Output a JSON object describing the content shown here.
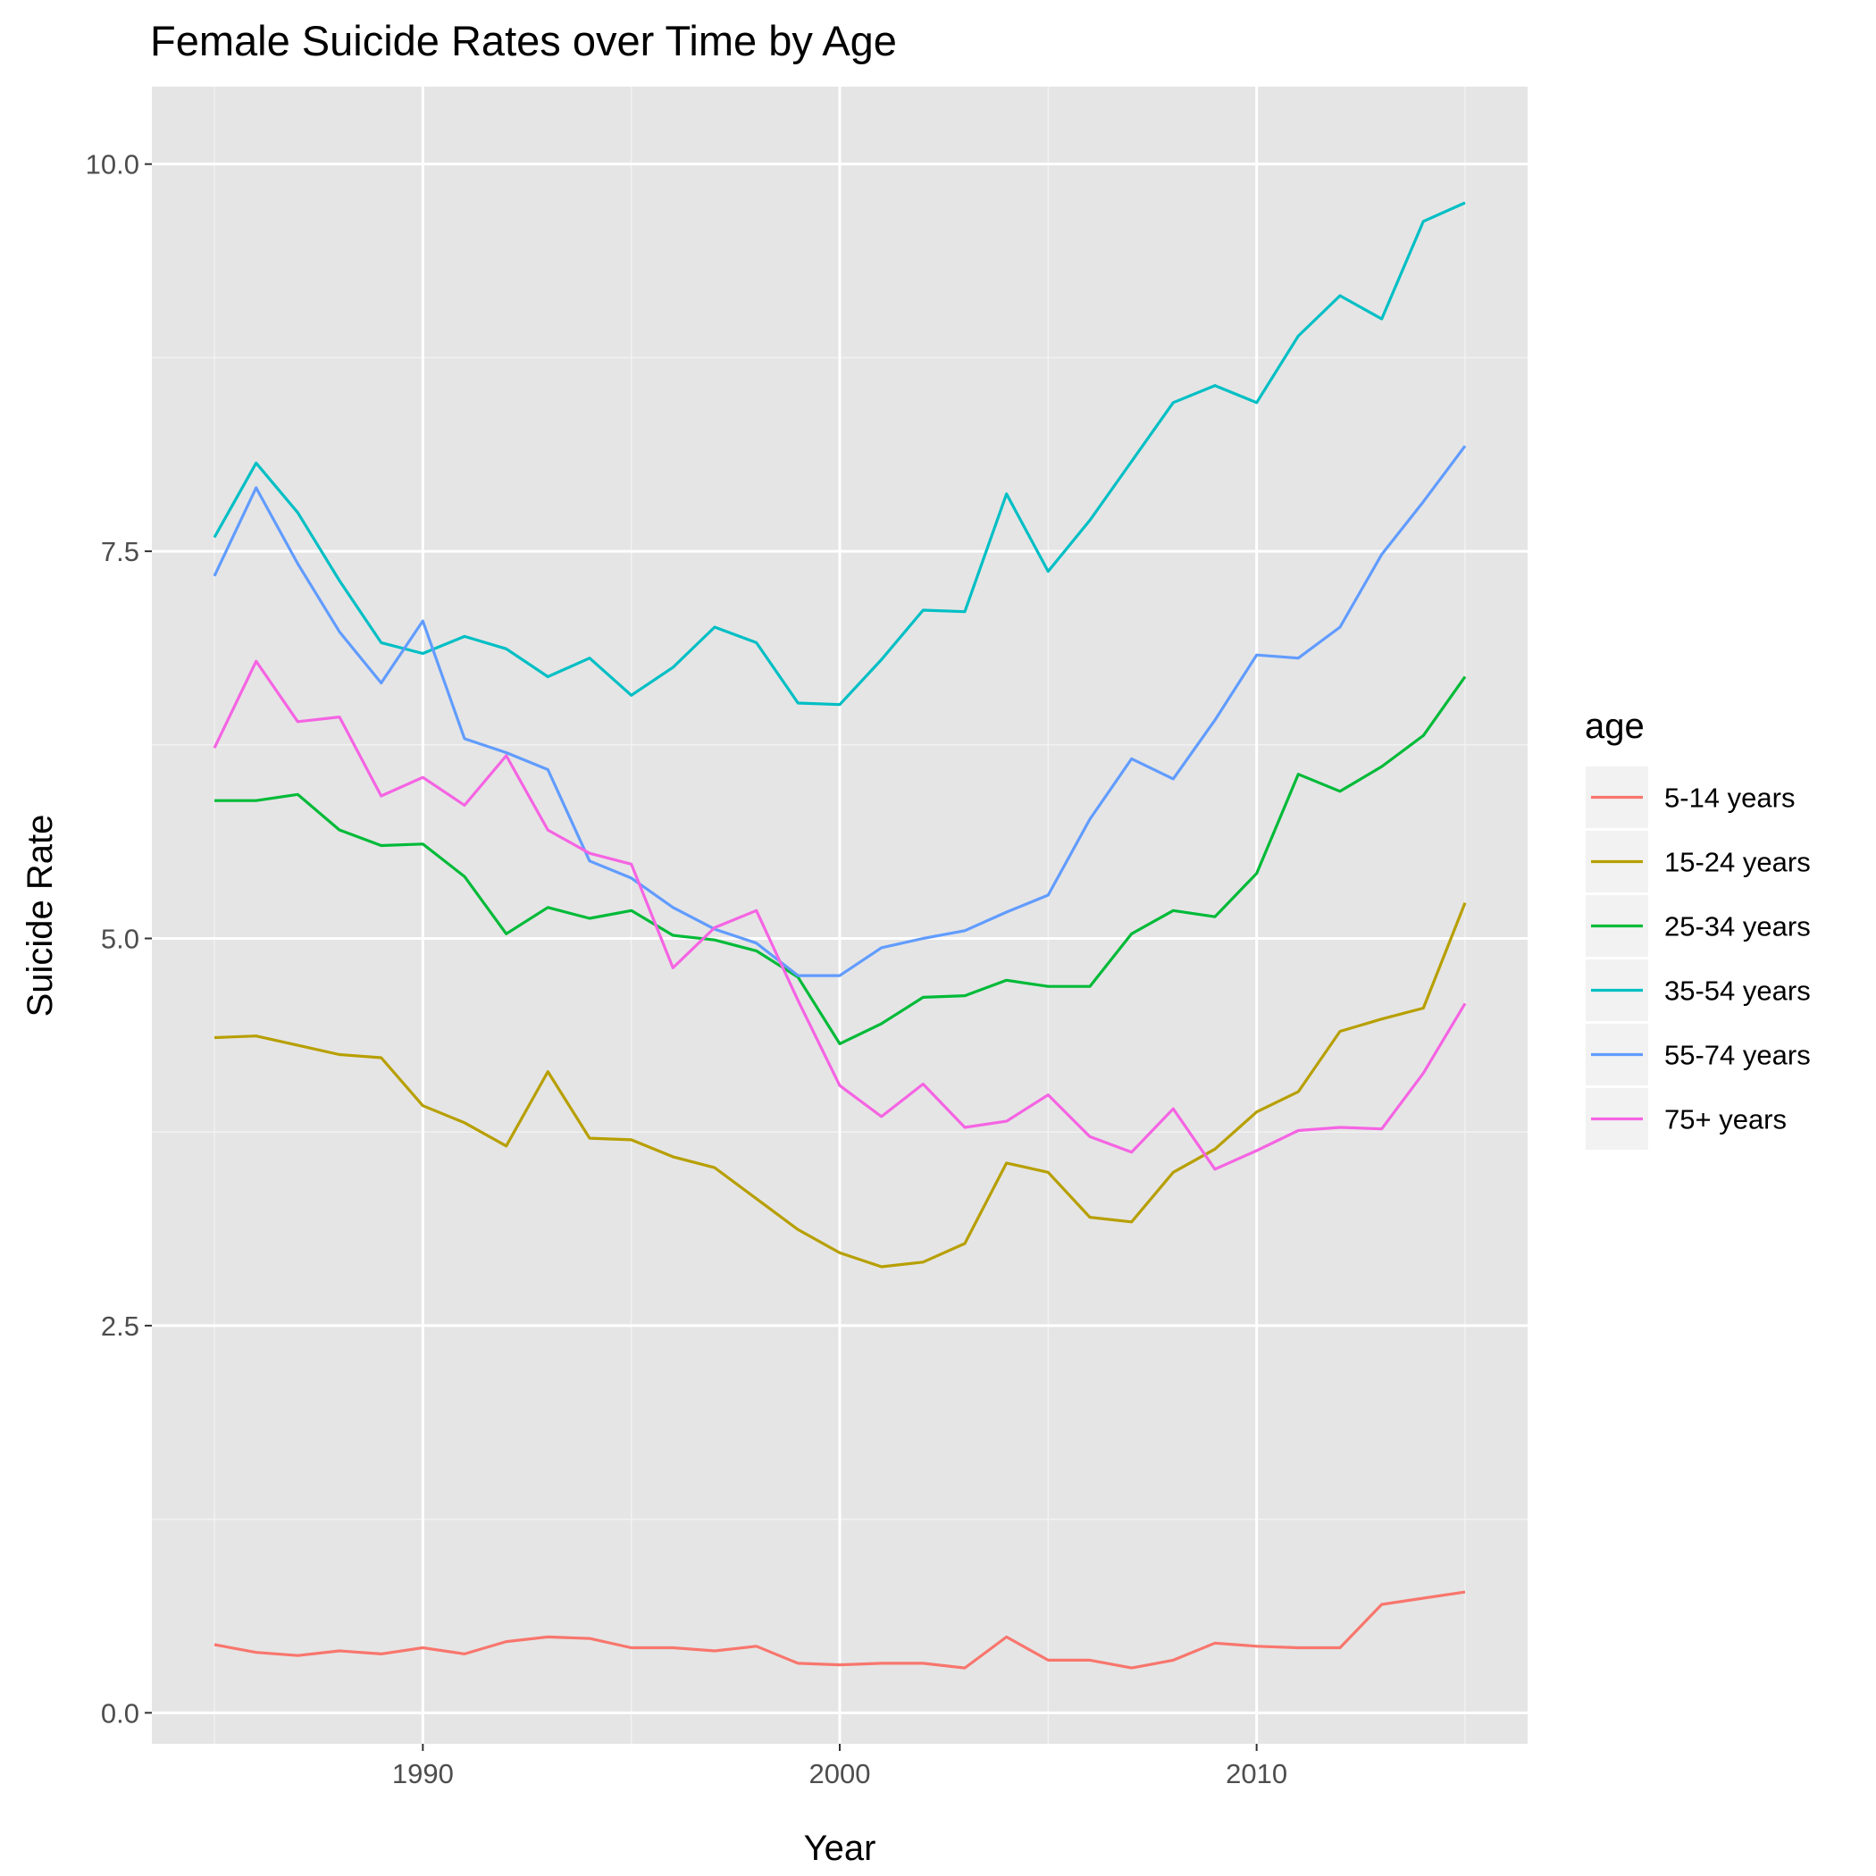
{
  "chart_data": {
    "type": "line",
    "title": "Female Suicide Rates over Time by Age",
    "xlabel": "Year",
    "ylabel": "Suicide Rate",
    "xlim": [
      1983.5,
      2016.5
    ],
    "ylim": [
      -0.2,
      10.5
    ],
    "x_ticks": [
      1990,
      2000,
      2010
    ],
    "x_minor_ticks": [
      1985,
      1995,
      2005,
      2015
    ],
    "y_ticks": [
      0.0,
      2.5,
      5.0,
      7.5,
      10.0
    ],
    "y_tick_labels": [
      "0.0",
      "2.5",
      "5.0",
      "7.5",
      "10.0"
    ],
    "y_minor_ticks": [
      1.25,
      3.75,
      6.25,
      8.75
    ],
    "grid": true,
    "panel_background": "#e5e5e5",
    "legend": {
      "title": "age",
      "position": "right"
    },
    "x": [
      1985,
      1986,
      1987,
      1988,
      1989,
      1990,
      1991,
      1992,
      1993,
      1994,
      1995,
      1996,
      1997,
      1998,
      1999,
      2000,
      2001,
      2002,
      2003,
      2004,
      2005,
      2006,
      2007,
      2008,
      2009,
      2010,
      2011,
      2012,
      2013,
      2014,
      2015
    ],
    "series": [
      {
        "name": "5-14 years",
        "color": "#F8766D",
        "values": [
          0.44,
          0.39,
          0.37,
          0.4,
          0.38,
          0.42,
          0.38,
          0.46,
          0.49,
          0.48,
          0.42,
          0.42,
          0.4,
          0.43,
          0.32,
          0.31,
          0.32,
          0.32,
          0.29,
          0.49,
          0.34,
          0.34,
          0.29,
          0.34,
          0.45,
          0.43,
          0.42,
          0.42,
          0.7,
          0.74,
          0.78
        ]
      },
      {
        "name": "15-24 years",
        "color": "#B79F00",
        "values": [
          4.36,
          4.37,
          4.31,
          4.25,
          4.23,
          3.92,
          3.81,
          3.66,
          4.14,
          3.71,
          3.7,
          3.59,
          3.52,
          3.32,
          3.12,
          2.97,
          2.88,
          2.91,
          3.03,
          3.55,
          3.49,
          3.2,
          3.17,
          3.49,
          3.64,
          3.88,
          4.01,
          4.4,
          4.48,
          4.55,
          5.23
        ]
      },
      {
        "name": "25-34 years",
        "color": "#00BA38",
        "values": [
          5.89,
          5.89,
          5.93,
          5.7,
          5.6,
          5.61,
          5.4,
          5.03,
          5.2,
          5.13,
          5.18,
          5.02,
          4.99,
          4.92,
          4.75,
          4.32,
          4.45,
          4.62,
          4.63,
          4.73,
          4.69,
          4.69,
          5.03,
          5.18,
          5.14,
          5.42,
          6.06,
          5.95,
          6.11,
          6.31,
          6.69
        ]
      },
      {
        "name": "35-54 years",
        "color": "#00BFC4",
        "values": [
          7.59,
          8.07,
          7.75,
          7.31,
          6.91,
          6.84,
          6.95,
          6.87,
          6.69,
          6.81,
          6.57,
          6.75,
          7.01,
          6.91,
          6.52,
          6.51,
          6.8,
          7.12,
          7.11,
          7.87,
          7.37,
          7.7,
          8.08,
          8.46,
          8.57,
          8.46,
          8.89,
          9.15,
          9.0,
          9.63,
          9.75
        ]
      },
      {
        "name": "55-74 years",
        "color": "#619CFF",
        "values": [
          7.34,
          7.91,
          7.42,
          6.98,
          6.65,
          7.05,
          6.29,
          6.2,
          6.09,
          5.5,
          5.39,
          5.2,
          5.06,
          4.97,
          4.76,
          4.76,
          4.94,
          5.0,
          5.05,
          5.17,
          5.28,
          5.77,
          6.16,
          6.03,
          6.41,
          6.83,
          6.81,
          7.01,
          7.48,
          7.82,
          8.18
        ]
      },
      {
        "name": "75+ years",
        "color": "#F564E3",
        "values": [
          6.23,
          6.79,
          6.4,
          6.43,
          5.92,
          6.04,
          5.86,
          6.18,
          5.7,
          5.55,
          5.48,
          4.81,
          5.07,
          5.18,
          4.6,
          4.05,
          3.85,
          4.06,
          3.78,
          3.82,
          3.99,
          3.72,
          3.62,
          3.9,
          3.51,
          3.63,
          3.76,
          3.78,
          3.77,
          4.13,
          4.58
        ]
      }
    ]
  }
}
